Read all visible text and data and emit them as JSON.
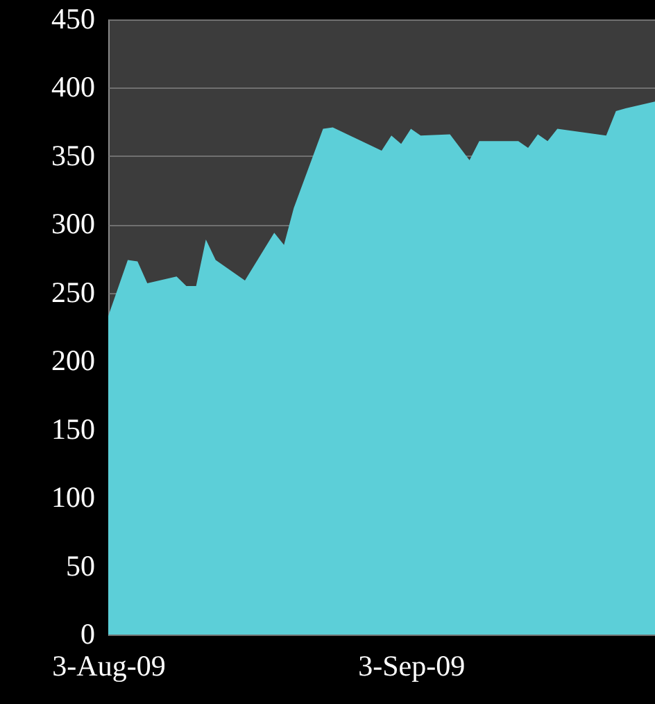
{
  "chart_data": {
    "type": "area",
    "x": [
      "2009-08-03",
      "2009-08-05",
      "2009-08-06",
      "2009-08-07",
      "2009-08-10",
      "2009-08-11",
      "2009-08-12",
      "2009-08-13",
      "2009-08-14",
      "2009-08-17",
      "2009-08-20",
      "2009-08-21",
      "2009-08-22",
      "2009-08-25",
      "2009-08-26",
      "2009-08-31",
      "2009-09-01",
      "2009-09-02",
      "2009-09-03",
      "2009-09-04",
      "2009-09-07",
      "2009-09-09",
      "2009-09-10",
      "2009-09-14",
      "2009-09-15",
      "2009-09-16",
      "2009-09-17",
      "2009-09-18",
      "2009-09-23",
      "2009-09-24",
      "2009-09-25",
      "2009-09-28"
    ],
    "series": [
      {
        "color": "#5ccfd8",
        "values": [
          233,
          274,
          273,
          257,
          262,
          255,
          255,
          289,
          274,
          259,
          294,
          285,
          312,
          370,
          371,
          354,
          365,
          359,
          370,
          365,
          366,
          347,
          361,
          361,
          356,
          366,
          361,
          370,
          365,
          383,
          385,
          390
        ]
      }
    ],
    "xlim": [
      "2009-08-03",
      "2009-09-28"
    ],
    "xticks": [
      {
        "value": "2009-08-03",
        "label": "3-Aug-09"
      },
      {
        "value": "2009-09-03",
        "label": "3-Sep-09"
      }
    ],
    "ylim": [
      0,
      450
    ],
    "yticks": [
      0,
      50,
      100,
      150,
      200,
      250,
      300,
      350,
      400,
      450
    ],
    "grid": "y"
  }
}
